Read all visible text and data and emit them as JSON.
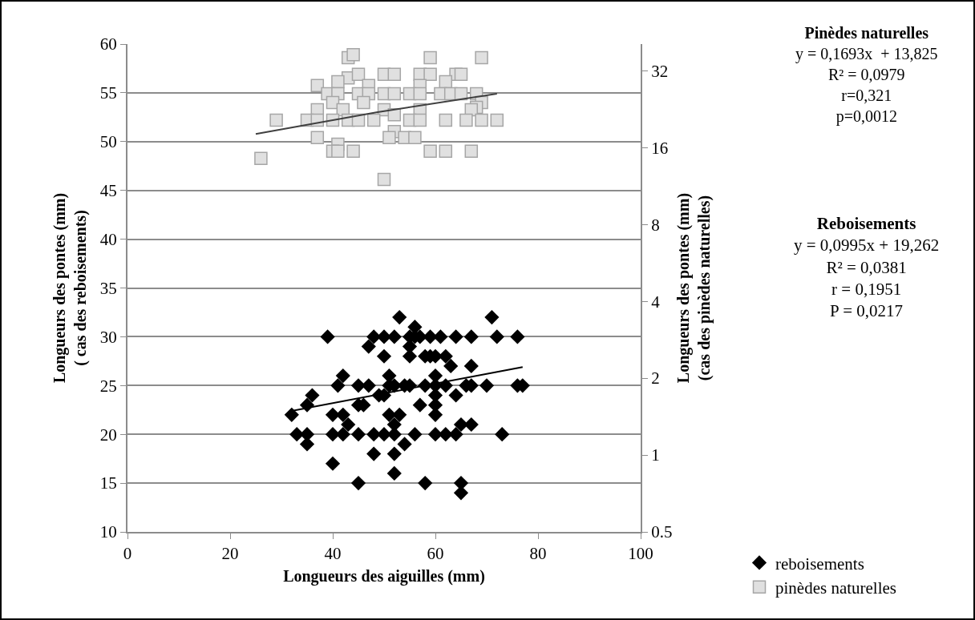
{
  "chart_data": {
    "type": "scatter",
    "xlabel": "Longueurs des aiguilles (mm)",
    "ylabel": "Longueurs des pontes (mm)\n( cas des reboisements)",
    "y2label": "Longueurs des pontes (mm)\n(cas des pinèdes naturelles)",
    "xlim": [
      0,
      100
    ],
    "xticks": [
      0,
      20,
      40,
      60,
      80,
      100
    ],
    "ylim": [
      10,
      60
    ],
    "yticks": [
      10,
      15,
      20,
      25,
      30,
      35,
      40,
      45,
      50,
      55,
      60
    ],
    "y2lim": [
      0.5,
      40.7
    ],
    "y2ticks": [
      0.5,
      1,
      2,
      4,
      8,
      16,
      32
    ],
    "log": "y2",
    "grid": "y",
    "legend": "bottom right",
    "annotations": [
      "Pinèdes naturelles\ny = 0,1693x  + 13,825\nR² = 0,0979\nr=0,321\np=0,0012",
      "Reboisements\ny = 0,0995x + 19,262\nR² = 0,0381\nr = 0,1951\nP = 0,0217"
    ],
    "series": [
      {
        "name": "reboisements",
        "marker": "diamond",
        "color": "#000000",
        "x": [
          53,
          71,
          39,
          48,
          50,
          52,
          55,
          56,
          57,
          59,
          61,
          64,
          67,
          72,
          76,
          56,
          47,
          55,
          50,
          55,
          58,
          59,
          60,
          62,
          63,
          67,
          42,
          51,
          60,
          41,
          45,
          47,
          51,
          52,
          54,
          55,
          58,
          60,
          62,
          66,
          67,
          70,
          76,
          77,
          36,
          49,
          50,
          60,
          64,
          35,
          45,
          46,
          57,
          60,
          32,
          40,
          42,
          51,
          53,
          60,
          43,
          52,
          65,
          67,
          33,
          35,
          40,
          42,
          45,
          48,
          50,
          52,
          56,
          60,
          62,
          64,
          73,
          35,
          54,
          48,
          52,
          40,
          52,
          45,
          58,
          65,
          65
        ],
        "values": [
          32,
          32,
          30,
          30,
          30,
          30,
          30,
          30,
          30,
          30,
          30,
          30,
          30,
          30,
          30,
          31,
          29,
          29,
          28,
          28,
          28,
          28,
          28,
          28,
          27,
          27,
          26,
          26,
          26,
          25,
          25,
          25,
          25,
          25,
          25,
          25,
          25,
          25,
          25,
          25,
          25,
          25,
          25,
          25,
          24,
          24,
          24,
          24,
          24,
          23,
          23,
          23,
          23,
          23,
          22,
          22,
          22,
          22,
          22,
          22,
          21,
          21,
          21,
          21,
          20,
          20,
          20,
          20,
          20,
          20,
          20,
          20,
          20,
          20,
          20,
          20,
          20,
          19,
          19,
          18,
          18,
          17,
          16,
          15,
          15,
          15,
          14
        ]
      },
      {
        "name": "pinèdes naturelles",
        "axis": "y2",
        "marker": "square",
        "color": "#e0e0e0",
        "x": [
          43,
          44,
          59,
          69,
          43,
          45,
          50,
          52,
          57,
          59,
          64,
          65,
          37,
          47,
          57,
          41,
          62,
          39,
          41,
          45,
          47,
          50,
          52,
          55,
          57,
          61,
          63,
          65,
          68,
          40,
          46,
          69,
          68,
          37,
          42,
          50,
          57,
          67,
          52,
          29,
          35,
          37,
          40,
          43,
          45,
          48,
          55,
          57,
          62,
          66,
          69,
          72,
          52,
          37,
          51,
          54,
          56,
          41,
          40,
          41,
          44,
          59,
          62,
          67,
          26,
          50
        ],
        "values": [
          36,
          37,
          36,
          36,
          30,
          31,
          31,
          31,
          31,
          31,
          31,
          31,
          28,
          28,
          28,
          29,
          29,
          26,
          26,
          26,
          26,
          26,
          26,
          26,
          26,
          26,
          26,
          26,
          26,
          24,
          24,
          24,
          23,
          22.5,
          22.5,
          22.5,
          22.5,
          22.5,
          21.5,
          20.5,
          20.5,
          20.5,
          20.5,
          20.5,
          20.5,
          20.5,
          20.5,
          20.5,
          20.5,
          20.5,
          20.5,
          20.5,
          18.5,
          17.5,
          17.5,
          17.5,
          17.5,
          16.5,
          15.5,
          15.5,
          15.5,
          15.5,
          15.5,
          15.5,
          14.5,
          12
        ]
      },
      {
        "type": "line",
        "marker": "none",
        "color": "#000000",
        "x": [
          32,
          77
        ],
        "values": [
          22.4,
          26.9
        ]
      },
      {
        "type": "line",
        "axis": "y2",
        "marker": "none",
        "color": "#404040",
        "x": [
          25,
          48.5,
          72
        ],
        "values": [
          18.1,
          22.0,
          26.0
        ]
      }
    ]
  }
}
